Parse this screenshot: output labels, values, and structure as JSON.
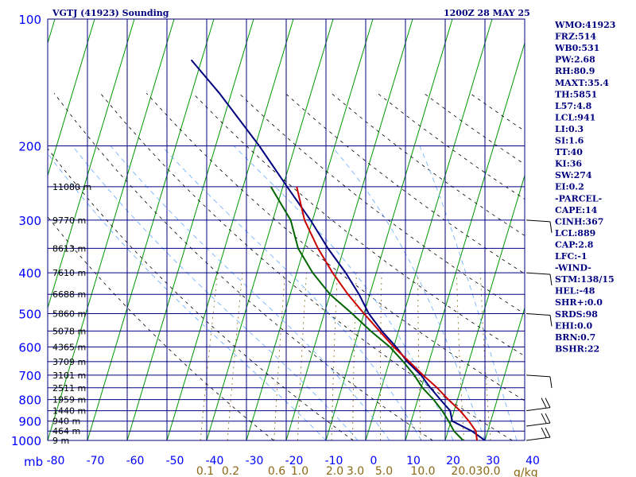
{
  "chart_data": {
    "type": "line",
    "title": "VGTJ (41923) Sounding",
    "time": "1200Z 28 MAY 25",
    "pressure_axis": {
      "unit_label": "mb",
      "ticks": [
        100,
        200,
        300,
        400,
        500,
        600,
        700,
        800,
        900,
        1000
      ],
      "range": [
        100,
        1000
      ],
      "scale": "log"
    },
    "temperature_axis": {
      "ticks": [
        -80,
        -70,
        -60,
        -50,
        -40,
        -30,
        -20,
        -10,
        0,
        10,
        20,
        30,
        40
      ],
      "tick_labels": [
        "-80",
        "-70",
        "-60",
        "-50",
        "-40",
        "-30",
        "-20",
        "-10",
        "0",
        "10",
        "20",
        "30",
        "40"
      ]
    },
    "mixing_ratio_axis": {
      "unit_label": "g/kg",
      "values": [
        0.1,
        0.2,
        0.6,
        1.0,
        2.0,
        3.0,
        5.0,
        10.0,
        20.0,
        30.0
      ],
      "tick_labels": [
        "0.1",
        "0.2",
        "0.6",
        "1.0",
        "2.0",
        "3.0",
        "5.0",
        "10.0",
        "20.0",
        "30.0"
      ]
    },
    "height_labels": [
      {
        "p": 250,
        "text": "11080 m"
      },
      {
        "p": 300,
        "text": "9770 m"
      },
      {
        "p": 350,
        "text": "8613 m"
      },
      {
        "p": 400,
        "text": "7610 m"
      },
      {
        "p": 450,
        "text": "6688 m"
      },
      {
        "p": 500,
        "text": "5860 m"
      },
      {
        "p": 550,
        "text": "5078 m"
      },
      {
        "p": 600,
        "text": "4365 m"
      },
      {
        "p": 650,
        "text": "3709 m"
      },
      {
        "p": 700,
        "text": "3101 m"
      },
      {
        "p": 750,
        "text": "2511 m"
      },
      {
        "p": 800,
        "text": "1959 m"
      },
      {
        "p": 850,
        "text": "1440 m"
      },
      {
        "p": 900,
        "text": "940 m"
      },
      {
        "p": 950,
        "text": "464 m"
      },
      {
        "p": 1000,
        "text": "9 m"
      }
    ],
    "series": [
      {
        "name": "",
        "color": "#000080",
        "points": [
          [
            1000,
            30.0
          ],
          [
            950,
            26.0
          ],
          [
            900,
            20.3
          ],
          [
            850,
            19.0
          ],
          [
            800,
            15.7
          ],
          [
            750,
            12.3
          ],
          [
            700,
            9.0
          ],
          [
            650,
            4.5
          ],
          [
            600,
            0.6
          ],
          [
            550,
            -4.2
          ],
          [
            500,
            -8.8
          ],
          [
            450,
            -12.7
          ],
          [
            400,
            -17.7
          ],
          [
            350,
            -24.0
          ],
          [
            300,
            -30.5
          ],
          [
            250,
            -38.9
          ],
          [
            200,
            -49.0
          ],
          [
            150,
            -63.0
          ],
          [
            125,
            -72.6
          ]
        ]
      },
      {
        "name": "",
        "color": "#006400",
        "points": [
          [
            1000,
            24.5
          ],
          [
            950,
            21.5
          ],
          [
            900,
            19.4
          ],
          [
            850,
            17.0
          ],
          [
            800,
            14.0
          ],
          [
            750,
            10.3
          ],
          [
            700,
            7.3
          ],
          [
            650,
            3.5
          ],
          [
            600,
            -1.0
          ],
          [
            550,
            -7.0
          ],
          [
            500,
            -13.0
          ],
          [
            450,
            -20.0
          ],
          [
            400,
            -26.0
          ],
          [
            350,
            -31.5
          ],
          [
            300,
            -35.5
          ],
          [
            250,
            -43.0
          ]
        ]
      },
      {
        "name": "",
        "color": "#cc0000",
        "points": [
          [
            1000,
            28.0
          ],
          [
            950,
            27.0
          ],
          [
            900,
            24.5
          ],
          [
            850,
            21.5
          ],
          [
            800,
            17.7
          ],
          [
            750,
            14.0
          ],
          [
            700,
            9.5
          ],
          [
            650,
            5.0
          ],
          [
            600,
            0.0
          ],
          [
            550,
            -4.8
          ],
          [
            500,
            -10.0
          ],
          [
            450,
            -15.5
          ],
          [
            400,
            -21.0
          ],
          [
            350,
            -26.5
          ],
          [
            300,
            -32.0
          ],
          [
            250,
            -36.5
          ]
        ]
      }
    ],
    "wind_barbs": [
      {
        "p": 1000,
        "label": "low-level barb"
      },
      {
        "p": 925,
        "label": "low-level barb"
      },
      {
        "p": 850,
        "label": "low-level barb"
      },
      {
        "p": 700,
        "label": "mid-level barb"
      },
      {
        "p": 500,
        "label": "mid-level barb"
      },
      {
        "p": 400,
        "label": "upper barb"
      },
      {
        "p": 300,
        "label": "upper barb"
      }
    ]
  },
  "indices": [
    "WMO:41923",
    "FRZ:514",
    "WB0:531",
    "PW:2.68",
    "RH:80.9",
    "MAXT:35.4",
    "TH:5851",
    "L57:4.8",
    "LCL:941",
    "LI:0.3",
    "SI:1.6",
    "TT:40",
    "KI:36",
    "SW:274",
    "EI:0.2",
    "-PARCEL-",
    "CAPE:14",
    "CINH:367",
    "LCL:889",
    "CAP:2.8",
    "LFC:-1",
    "-WIND-",
    "STM:138/15",
    "HEL:-48",
    "SHR+:0.0",
    "SRDS:98",
    "EHI:0.0",
    "BRN:0.7",
    "BSHR:22"
  ],
  "colors": {
    "grid": "#000080",
    "isotherm": "#009900",
    "dry_adiabat": "#000000",
    "moist_adiabat": "#66aaff",
    "mixing_ratio": "#8b6914",
    "axis_labels": "#0000ff"
  }
}
